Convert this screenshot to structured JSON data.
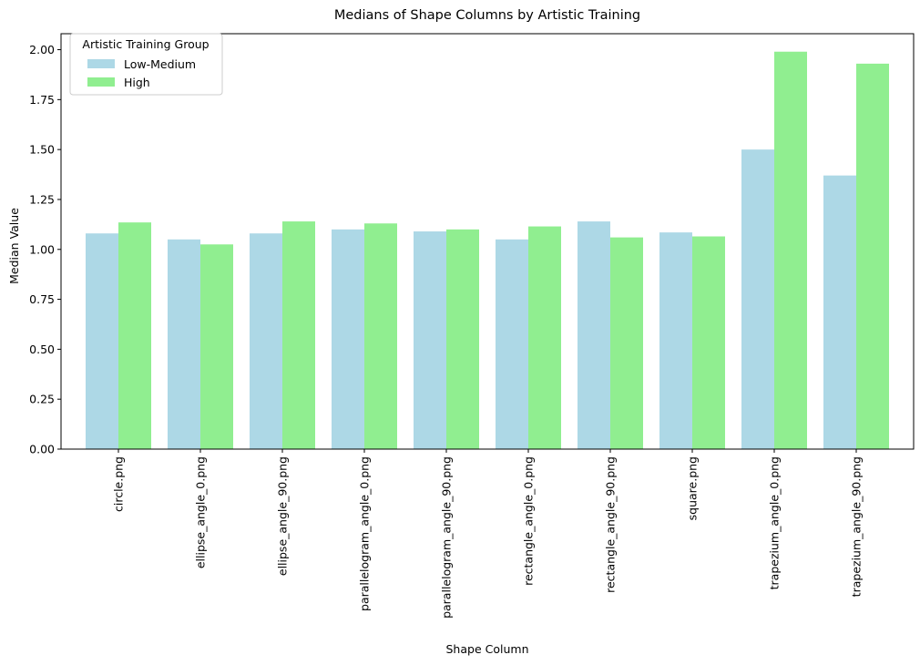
{
  "chart_data": {
    "type": "bar",
    "title": "Medians of Shape Columns by Artistic Training",
    "xlabel": "Shape Column",
    "ylabel": "Median Value",
    "ylim": [
      0,
      2.08
    ],
    "yticks": [
      "0.00",
      "0.25",
      "0.50",
      "0.75",
      "1.00",
      "1.25",
      "1.50",
      "1.75",
      "2.00"
    ],
    "categories": [
      "circle.png",
      "ellipse_angle_0.png",
      "ellipse_angle_90.png",
      "parallelogram_angle_0.png",
      "parallelogram_angle_90.png",
      "rectangle_angle_0.png",
      "rectangle_angle_90.png",
      "square.png",
      "trapezium_angle_0.png",
      "trapezium_angle_90.png"
    ],
    "series": [
      {
        "name": "Low-Medium",
        "color": "#add8e6",
        "values": [
          1.08,
          1.05,
          1.08,
          1.1,
          1.09,
          1.05,
          1.14,
          1.085,
          1.5,
          1.37
        ]
      },
      {
        "name": "High",
        "color": "#90ee90",
        "values": [
          1.135,
          1.025,
          1.14,
          1.13,
          1.1,
          1.115,
          1.06,
          1.065,
          1.99,
          1.93
        ]
      }
    ],
    "legend": {
      "title": "Artistic Training Group",
      "placement": "top-left"
    },
    "grid": false
  }
}
